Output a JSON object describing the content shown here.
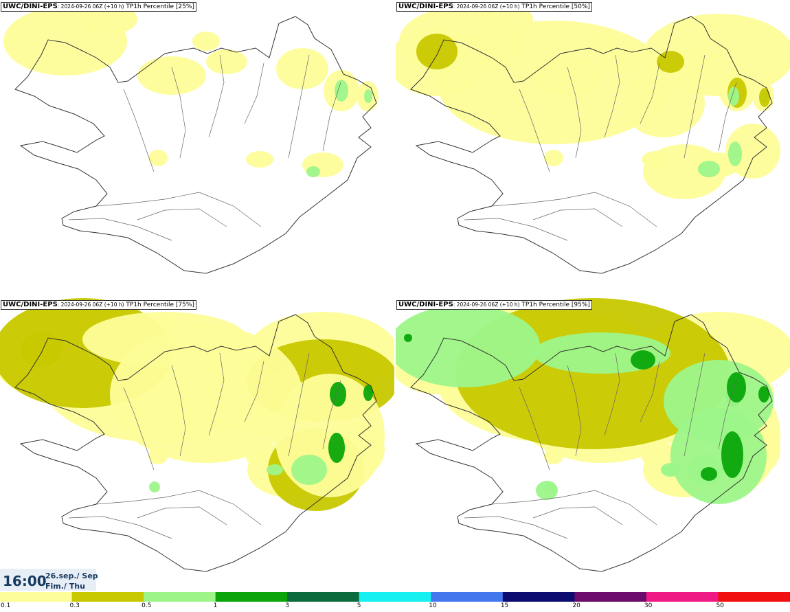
{
  "panels": [
    {
      "model": "UWC/DINI-EPS",
      "run": ": 2024-09-26 06Z (+10 h)",
      "field": " TP1h Percentile [25%]",
      "level": 0
    },
    {
      "model": "UWC/DINI-EPS",
      "run": ": 2024-09-26 06Z (+10 h)",
      "field": " TP1h Percentile [50%]",
      "level": 1
    },
    {
      "model": "UWC/DINI-EPS",
      "run": ": 2024-09-26 06Z (+10 h)",
      "field": " TP1h Percentile [75%]",
      "level": 2
    },
    {
      "model": "UWC/DINI-EPS",
      "run": ": 2024-09-26 06Z (+10 h)",
      "field": " TP1h Percentile [95%]",
      "level": 3
    }
  ],
  "footer": {
    "time": "16:00",
    "date_line1": "26.sep./ Sep",
    "date_line2": "Fim./ Thu"
  },
  "legend": {
    "colors": [
      "#fdfd99",
      "#c8c800",
      "#9df58a",
      "#0ba50b",
      "#0b6b3c",
      "#17f0f0",
      "#4477ee",
      "#0b0b70",
      "#6b0b6b",
      "#f01a85",
      "#f01010"
    ],
    "tick_labels": [
      "0.1",
      "0.3",
      "0.5",
      "1",
      "3",
      "5",
      "10",
      "15",
      "20",
      "30",
      "50"
    ]
  }
}
